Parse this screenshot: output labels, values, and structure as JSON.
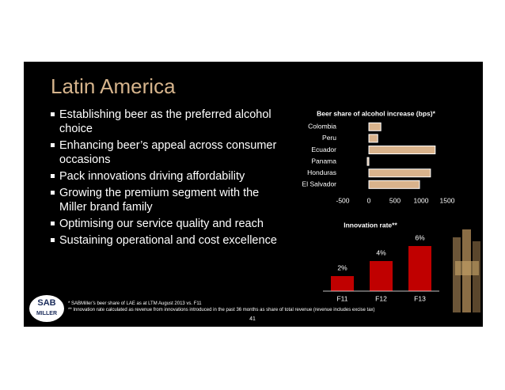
{
  "title": "Latin America",
  "bullets": [
    "Establishing beer as the preferred alcohol choice",
    "Enhancing beer’s appeal across consumer occasions",
    "Pack innovations driving affordability",
    "Growing the premium segment with the Miller brand family",
    "Optimising our service quality and reach",
    "Sustaining operational and cost excellence"
  ],
  "footnotes": [
    "* SABMiller’s beer share of LAE as at LTM August 2013 vs. F11",
    "** Innovation rate calculated as revenue from innovations introduced in the past 36 months as share of total revenue (revenue includes excise tax)"
  ],
  "page_number": "41",
  "logo": [
    "SAB",
    "MILLER"
  ],
  "chart_data": [
    {
      "type": "hbar",
      "title": "Beer share of alcohol increase (bps)*",
      "categories": [
        "Colombia",
        "Peru",
        "Ecuador",
        "Panama",
        "Honduras",
        "El Salvador"
      ],
      "values": [
        230,
        170,
        1270,
        -30,
        1180,
        970
      ],
      "color": "#d9b38c",
      "xlim": [
        -500,
        1500
      ],
      "xticks": [
        -500,
        0,
        500,
        1000,
        1500
      ]
    },
    {
      "type": "bar",
      "title": "Innovation rate**",
      "categories": [
        "F11",
        "F12",
        "F13"
      ],
      "values": [
        2,
        4,
        6
      ],
      "value_labels": [
        "2%",
        "4%",
        "6%"
      ],
      "color": "#c00000"
    }
  ]
}
